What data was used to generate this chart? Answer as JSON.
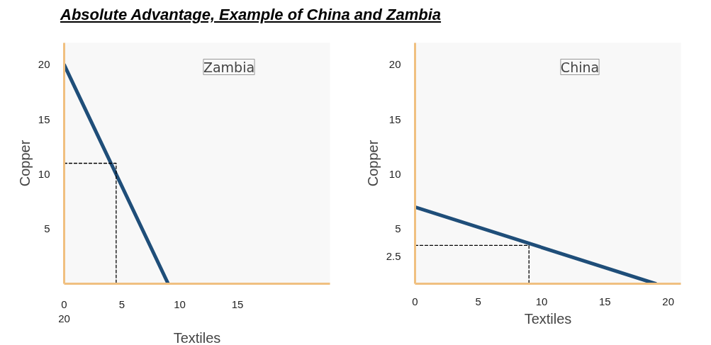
{
  "chart_data": [
    {
      "type": "line",
      "title": "Absolute Advantage, Example of China and Zambia",
      "xlabel": "Textiles",
      "ylabel": "Copper",
      "annotations": [
        "Zambia",
        "20"
      ],
      "xlim": [
        0,
        23
      ],
      "ylim": [
        0,
        22
      ],
      "xticks": [
        0,
        5,
        10,
        15
      ],
      "yticks": [
        5,
        10,
        15,
        20
      ],
      "grid": false,
      "series": [
        {
          "x": [
            0,
            9
          ],
          "values": [
            20,
            0
          ],
          "color": "#1f4e79",
          "line_style": "solid"
        },
        {
          "x": [
            0,
            4.5,
            4.5
          ],
          "values": [
            11,
            11,
            0
          ],
          "color": "#000000",
          "line_style": "dashed"
        }
      ]
    },
    {
      "type": "line",
      "xlabel": "Textiles",
      "ylabel": "Copper",
      "annotations": [
        "China"
      ],
      "xlim": [
        0,
        21
      ],
      "ylim": [
        0,
        22
      ],
      "xticks": [
        0,
        5,
        10,
        15,
        20
      ],
      "yticks": [
        2.5,
        5,
        10,
        15,
        20
      ],
      "grid": false,
      "series": [
        {
          "x": [
            0,
            19
          ],
          "values": [
            7,
            0
          ],
          "color": "#1f4e79",
          "line_style": "solid"
        },
        {
          "x": [
            0,
            9,
            9
          ],
          "values": [
            3.5,
            3.5,
            0
          ],
          "color": "#000000",
          "line_style": "dashed"
        }
      ]
    }
  ]
}
